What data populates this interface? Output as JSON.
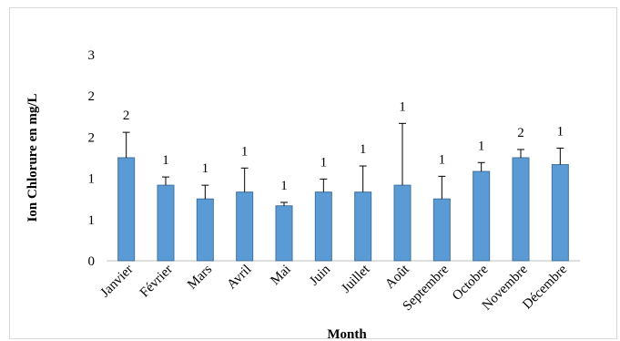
{
  "chart_data": {
    "type": "bar",
    "title": "",
    "xlabel": "Month",
    "ylabel": "Ion Chlorure en mg/L",
    "ylim": [
      0,
      3
    ],
    "y_tick_labels": [
      "0",
      "1",
      "1",
      "2",
      "2",
      "3"
    ],
    "grid": false,
    "legend": "none",
    "categories": [
      "Janvier",
      "Février",
      "Mars",
      "Avril",
      "Mai",
      "Juin",
      "Juillet",
      "Août",
      "Septembre",
      "Octobre",
      "Novembre",
      "Décembre"
    ],
    "series": [
      {
        "values": [
          1.5,
          1.1,
          0.9,
          1.0,
          0.8,
          1.0,
          1.0,
          1.1,
          0.9,
          1.3,
          1.5,
          1.4
        ],
        "error_plus": [
          0.37,
          0.12,
          0.2,
          0.35,
          0.05,
          0.19,
          0.38,
          0.9,
          0.33,
          0.13,
          0.12,
          0.24
        ],
        "data_labels": [
          "2",
          "1",
          "1",
          "1",
          "1",
          "1",
          "1",
          "1",
          "1",
          "1",
          "2",
          "1"
        ],
        "color": "#5b9bd5"
      }
    ]
  }
}
